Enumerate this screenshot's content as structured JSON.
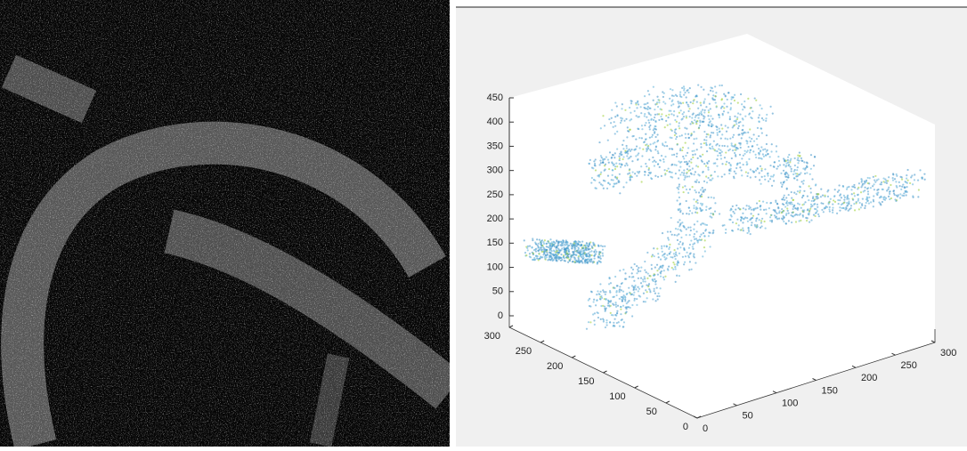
{
  "plot3d": {
    "zticks": [
      0,
      50,
      100,
      150,
      200,
      250,
      300,
      350,
      400,
      450
    ],
    "xticks": [
      0,
      50,
      100,
      150,
      200,
      250,
      300
    ],
    "yticks": [
      0,
      50,
      100,
      150,
      200,
      250,
      300
    ]
  }
}
